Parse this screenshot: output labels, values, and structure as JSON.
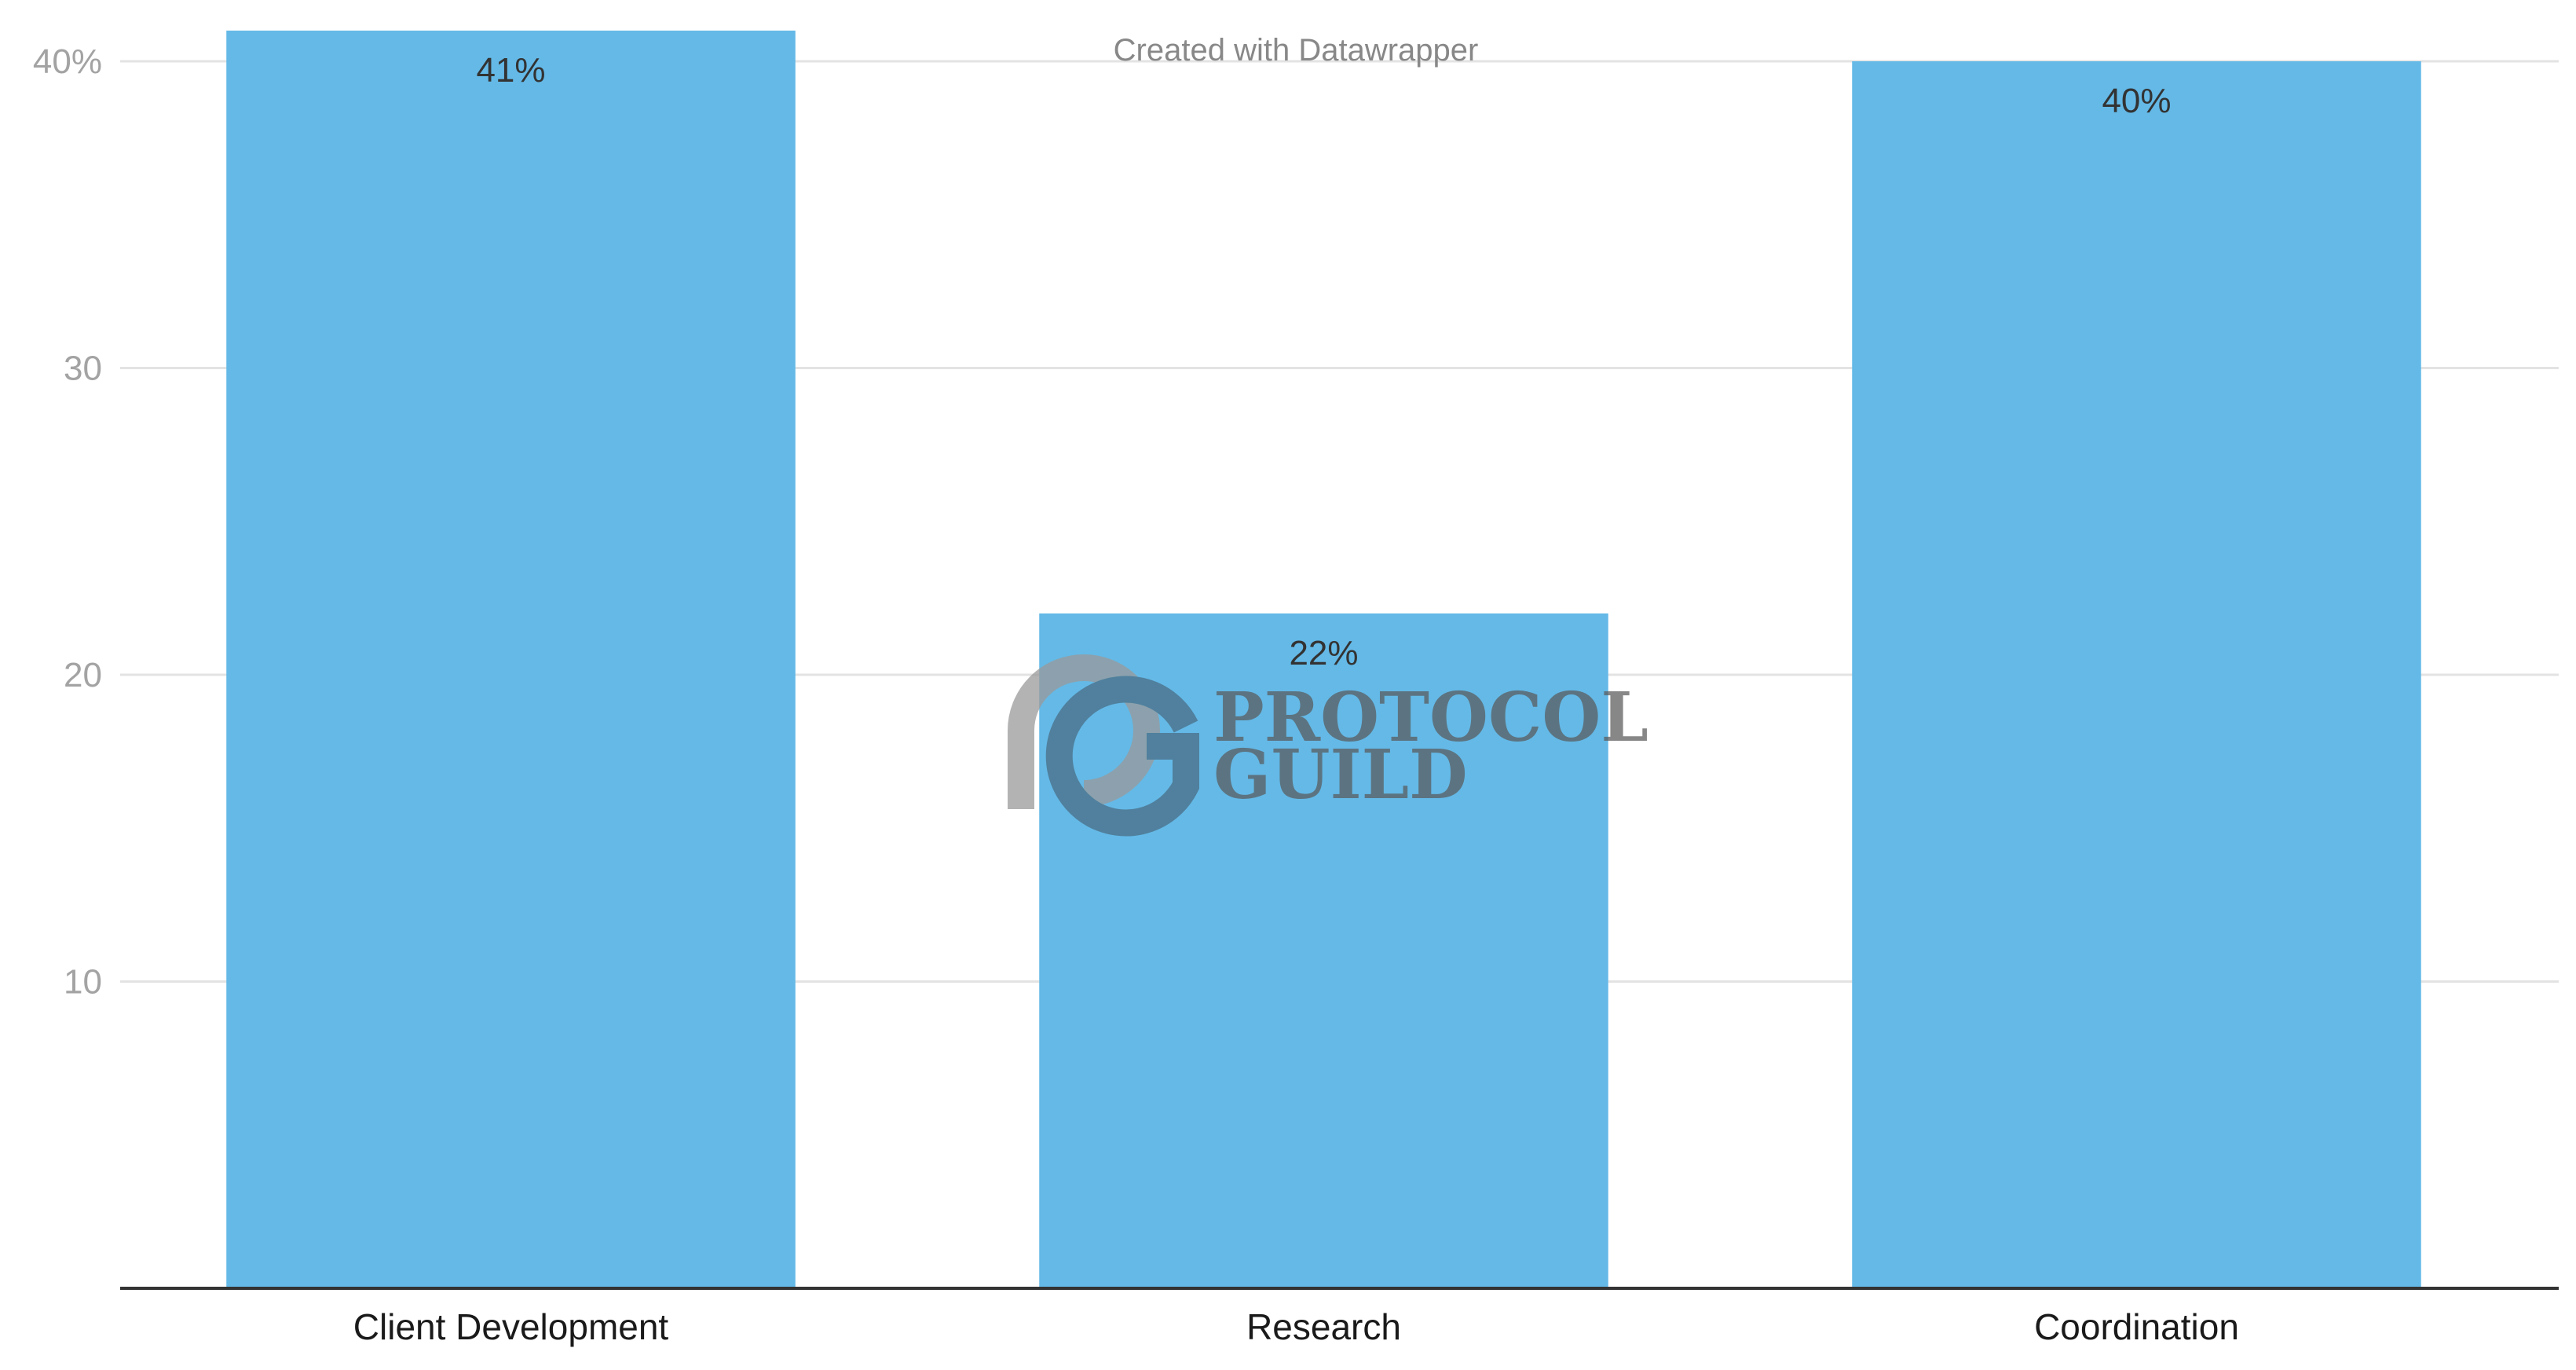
{
  "credit": "Created with Datawrapper",
  "watermark": {
    "icon": "protocol-guild-logo-icon",
    "line1": "PROTOCOL",
    "line2": "GUILD"
  },
  "colors": {
    "bar": "#64b9e7",
    "gridline": "#e3e3e3",
    "baseline": "#333333",
    "ytick": "#a3a3a3",
    "xtick": "#1a1a1a"
  },
  "chart_data": {
    "type": "bar",
    "title": "",
    "xlabel": "",
    "ylabel": "",
    "categories": [
      "Client Development",
      "Research",
      "Coordination"
    ],
    "values": [
      41,
      22,
      40
    ],
    "data_labels": [
      "41%",
      "22%",
      "40%"
    ],
    "ylim": [
      0,
      40
    ],
    "yticks": [
      10,
      20,
      30,
      40
    ],
    "ytick_labels": [
      "10",
      "20",
      "30",
      "40%"
    ],
    "grid": true,
    "legend": "none"
  }
}
